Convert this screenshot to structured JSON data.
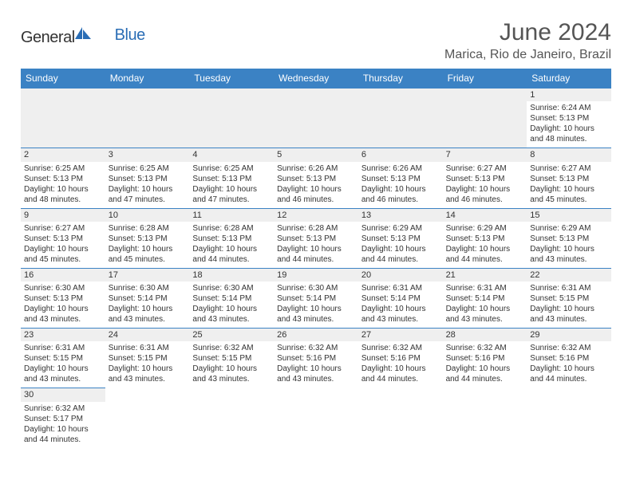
{
  "header": {
    "logo_part1": "General",
    "logo_part2": "Blue",
    "title": "June 2024",
    "location": "Marica, Rio de Janeiro, Brazil"
  },
  "colors": {
    "header_bg": "#3b82c4",
    "header_text": "#ffffff",
    "day_bg": "#efefef",
    "border": "#3b82c4",
    "text": "#333333",
    "title_text": "#555555"
  },
  "weekdays": [
    "Sunday",
    "Monday",
    "Tuesday",
    "Wednesday",
    "Thursday",
    "Friday",
    "Saturday"
  ],
  "layout": {
    "first_day_col": 6,
    "rows": 6,
    "cols": 7
  },
  "days": [
    {
      "n": 1,
      "sunrise": "6:24 AM",
      "sunset": "5:13 PM",
      "daylight": "10 hours and 48 minutes."
    },
    {
      "n": 2,
      "sunrise": "6:25 AM",
      "sunset": "5:13 PM",
      "daylight": "10 hours and 48 minutes."
    },
    {
      "n": 3,
      "sunrise": "6:25 AM",
      "sunset": "5:13 PM",
      "daylight": "10 hours and 47 minutes."
    },
    {
      "n": 4,
      "sunrise": "6:25 AM",
      "sunset": "5:13 PM",
      "daylight": "10 hours and 47 minutes."
    },
    {
      "n": 5,
      "sunrise": "6:26 AM",
      "sunset": "5:13 PM",
      "daylight": "10 hours and 46 minutes."
    },
    {
      "n": 6,
      "sunrise": "6:26 AM",
      "sunset": "5:13 PM",
      "daylight": "10 hours and 46 minutes."
    },
    {
      "n": 7,
      "sunrise": "6:27 AM",
      "sunset": "5:13 PM",
      "daylight": "10 hours and 46 minutes."
    },
    {
      "n": 8,
      "sunrise": "6:27 AM",
      "sunset": "5:13 PM",
      "daylight": "10 hours and 45 minutes."
    },
    {
      "n": 9,
      "sunrise": "6:27 AM",
      "sunset": "5:13 PM",
      "daylight": "10 hours and 45 minutes."
    },
    {
      "n": 10,
      "sunrise": "6:28 AM",
      "sunset": "5:13 PM",
      "daylight": "10 hours and 45 minutes."
    },
    {
      "n": 11,
      "sunrise": "6:28 AM",
      "sunset": "5:13 PM",
      "daylight": "10 hours and 44 minutes."
    },
    {
      "n": 12,
      "sunrise": "6:28 AM",
      "sunset": "5:13 PM",
      "daylight": "10 hours and 44 minutes."
    },
    {
      "n": 13,
      "sunrise": "6:29 AM",
      "sunset": "5:13 PM",
      "daylight": "10 hours and 44 minutes."
    },
    {
      "n": 14,
      "sunrise": "6:29 AM",
      "sunset": "5:13 PM",
      "daylight": "10 hours and 44 minutes."
    },
    {
      "n": 15,
      "sunrise": "6:29 AM",
      "sunset": "5:13 PM",
      "daylight": "10 hours and 43 minutes."
    },
    {
      "n": 16,
      "sunrise": "6:30 AM",
      "sunset": "5:13 PM",
      "daylight": "10 hours and 43 minutes."
    },
    {
      "n": 17,
      "sunrise": "6:30 AM",
      "sunset": "5:14 PM",
      "daylight": "10 hours and 43 minutes."
    },
    {
      "n": 18,
      "sunrise": "6:30 AM",
      "sunset": "5:14 PM",
      "daylight": "10 hours and 43 minutes."
    },
    {
      "n": 19,
      "sunrise": "6:30 AM",
      "sunset": "5:14 PM",
      "daylight": "10 hours and 43 minutes."
    },
    {
      "n": 20,
      "sunrise": "6:31 AM",
      "sunset": "5:14 PM",
      "daylight": "10 hours and 43 minutes."
    },
    {
      "n": 21,
      "sunrise": "6:31 AM",
      "sunset": "5:14 PM",
      "daylight": "10 hours and 43 minutes."
    },
    {
      "n": 22,
      "sunrise": "6:31 AM",
      "sunset": "5:15 PM",
      "daylight": "10 hours and 43 minutes."
    },
    {
      "n": 23,
      "sunrise": "6:31 AM",
      "sunset": "5:15 PM",
      "daylight": "10 hours and 43 minutes."
    },
    {
      "n": 24,
      "sunrise": "6:31 AM",
      "sunset": "5:15 PM",
      "daylight": "10 hours and 43 minutes."
    },
    {
      "n": 25,
      "sunrise": "6:32 AM",
      "sunset": "5:15 PM",
      "daylight": "10 hours and 43 minutes."
    },
    {
      "n": 26,
      "sunrise": "6:32 AM",
      "sunset": "5:16 PM",
      "daylight": "10 hours and 43 minutes."
    },
    {
      "n": 27,
      "sunrise": "6:32 AM",
      "sunset": "5:16 PM",
      "daylight": "10 hours and 44 minutes."
    },
    {
      "n": 28,
      "sunrise": "6:32 AM",
      "sunset": "5:16 PM",
      "daylight": "10 hours and 44 minutes."
    },
    {
      "n": 29,
      "sunrise": "6:32 AM",
      "sunset": "5:16 PM",
      "daylight": "10 hours and 44 minutes."
    },
    {
      "n": 30,
      "sunrise": "6:32 AM",
      "sunset": "5:17 PM",
      "daylight": "10 hours and 44 minutes."
    }
  ],
  "labels": {
    "sunrise_prefix": "Sunrise: ",
    "sunset_prefix": "Sunset: ",
    "daylight_prefix": "Daylight: "
  }
}
